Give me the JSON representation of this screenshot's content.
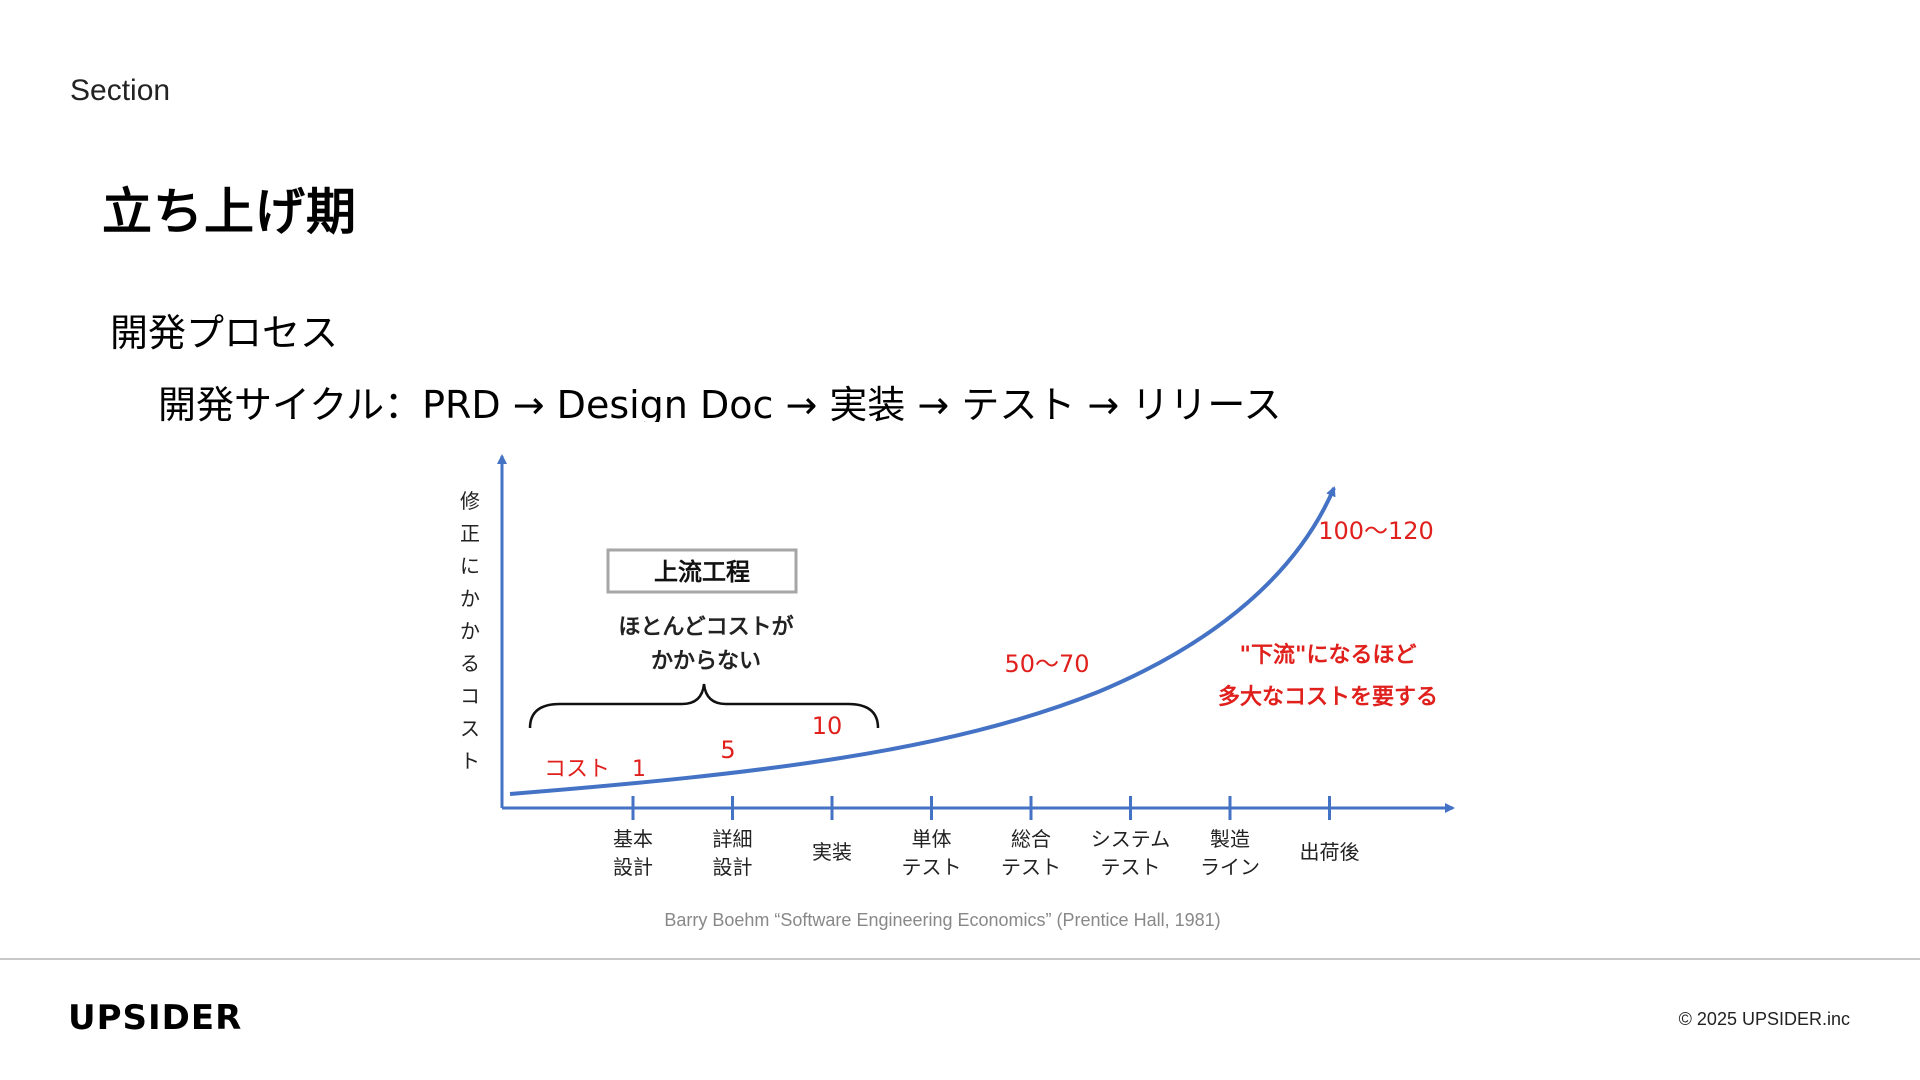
{
  "header": {
    "section": "Section",
    "title": "立ち上げ期"
  },
  "content": {
    "subtitle": "開発プロセス",
    "cycle": "開発サイクル：PRD → Design Doc → 実装 → テスト → リリース"
  },
  "chart_data": {
    "type": "line",
    "ylabel": "修正にかかるコスト",
    "categories": [
      "基本\n設計",
      "詳細\n設計",
      "実装",
      "単体\nテスト",
      "総合\nテスト",
      "システム\nテスト",
      "製造\nライン",
      "出荷後"
    ],
    "cost_labels": [
      "コスト　1",
      "5",
      "10",
      "50〜70",
      "100〜120"
    ],
    "upstream_box": "上流工程",
    "upstream_note": [
      "ほとんどコストが",
      "かからない"
    ],
    "downstream_note": [
      "\"下流\"になるほど",
      "多大なコストを要する"
    ],
    "colors": {
      "axis": "#4472c4",
      "curve": "#4472c4",
      "cost": "#e0201c"
    }
  },
  "citation": "Barry Boehm “Software Engineering Economics” (Prentice Hall, 1981)",
  "footer": {
    "logo": "UPSIDER",
    "copyright": "© 2025 UPSIDER.inc"
  }
}
